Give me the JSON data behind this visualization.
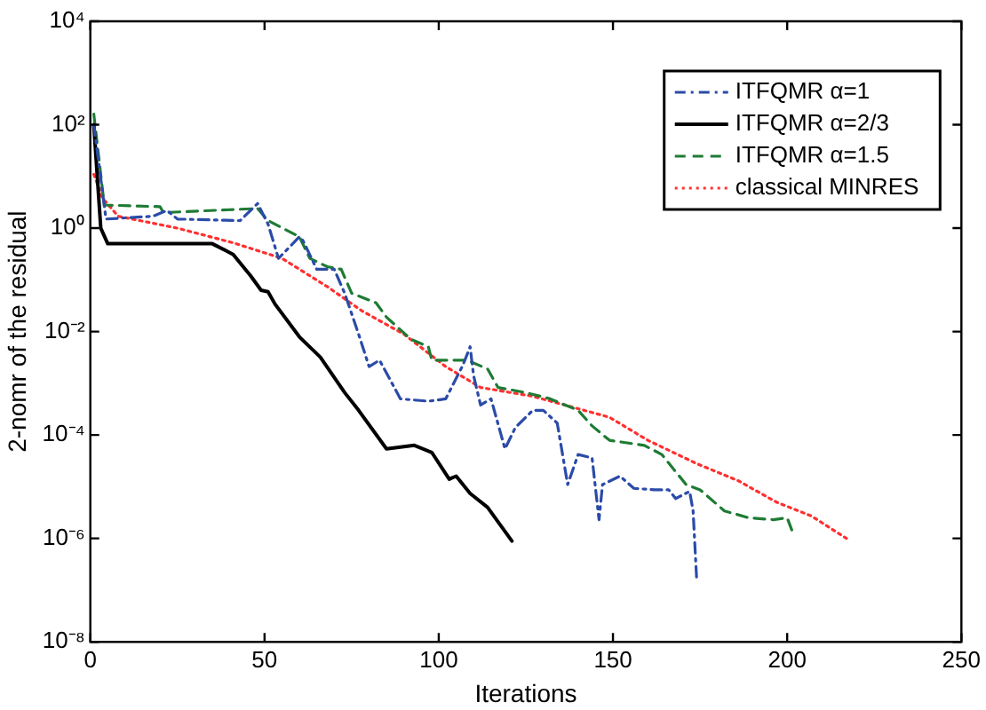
{
  "chart_data": {
    "type": "line",
    "xlabel": "Iterations",
    "ylabel": "2-nomr of the residual",
    "log": "y",
    "grid": false,
    "legend": "top right",
    "marker": "none",
    "xlim": [
      0,
      250
    ],
    "xticks": [
      0,
      50,
      100,
      150,
      200,
      250
    ],
    "ylim": [
      1e-08,
      10000
    ],
    "yticks": [
      {
        "value": 1e-08,
        "label": "10⁻⁸"
      },
      {
        "value": 1e-06,
        "label": "10⁻⁶"
      },
      {
        "value": 0.0001,
        "label": "10⁻⁴"
      },
      {
        "value": 0.01,
        "label": "10⁻²"
      },
      {
        "value": 1,
        "label": "10⁰"
      },
      {
        "value": 100,
        "label": "10²"
      },
      {
        "value": 10000,
        "label": "10⁴"
      }
    ],
    "series": [
      {
        "name": "ITFQMR α=1",
        "color": "#2b4ba8",
        "line_style": "dashdot",
        "x": [
          1,
          4.5,
          18,
          22,
          25,
          43,
          48,
          51,
          54,
          60,
          61,
          65,
          70,
          73,
          77,
          80,
          83,
          89,
          97,
          102,
          107,
          109,
          110,
          112,
          115,
          119,
          122,
          127,
          130,
          134,
          137,
          140,
          144,
          146,
          147,
          152,
          156,
          162,
          166,
          168,
          172,
          173,
          174
        ],
        "values": [
          100,
          1.5,
          1.7,
          2.2,
          1.5,
          1.4,
          3.0,
          1.2,
          0.26,
          0.68,
          0.58,
          0.16,
          0.16,
          0.055,
          0.0089,
          0.0021,
          0.0028,
          0.0005,
          0.00045,
          0.0005,
          0.0023,
          0.0051,
          0.0014,
          0.00038,
          0.0005,
          5.4e-05,
          0.00014,
          0.0003,
          0.0003,
          0.00017,
          1.1e-05,
          4.2e-05,
          3.6e-05,
          2.3e-06,
          1.1e-05,
          1.6e-05,
          9.3e-06,
          8.7e-06,
          8.7e-06,
          5.9e-06,
          8.1e-06,
          3.4e-06,
          1.7e-07
        ]
      },
      {
        "name": "ITFQMR α=2/3",
        "color": "#000000",
        "line_style": "solid",
        "x": [
          1,
          3,
          5,
          20,
          35,
          41,
          46,
          49,
          51,
          53,
          60,
          66,
          73,
          77,
          85,
          93,
          98,
          103,
          105,
          109,
          114,
          121
        ],
        "values": [
          100,
          1,
          0.5,
          0.5,
          0.5,
          0.31,
          0.12,
          0.063,
          0.059,
          0.034,
          0.0079,
          0.0032,
          0.00066,
          0.0003,
          5.4e-05,
          6.3e-05,
          4.6e-05,
          1.4e-05,
          1.6e-05,
          7.4e-06,
          4e-06,
          8.9e-07
        ]
      },
      {
        "name": "ITFQMR α=1.5",
        "color": "#1e7b34",
        "line_style": "dashed",
        "x": [
          1,
          4,
          20,
          21,
          48,
          51,
          60,
          63,
          68,
          72,
          75,
          82,
          85,
          92,
          97,
          98,
          108,
          114,
          117,
          125,
          132,
          140,
          144,
          149,
          159,
          164,
          171,
          175,
          182,
          189,
          196,
          200,
          202
        ],
        "values": [
          160,
          2.8,
          2.6,
          2.0,
          2.4,
          1.4,
          0.68,
          0.26,
          0.18,
          0.16,
          0.055,
          0.036,
          0.019,
          0.0071,
          0.0051,
          0.0028,
          0.0028,
          0.0019,
          0.00083,
          0.00066,
          0.0005,
          0.0003,
          0.00015,
          7.9e-05,
          6.3e-05,
          4.2e-05,
          1.1e-05,
          8.7e-06,
          3.4e-06,
          2.5e-06,
          2.3e-06,
          2.5e-06,
          1.1e-06
        ]
      },
      {
        "name": "classical MINRES",
        "color": "#ff3030",
        "line_style": "dotted",
        "x": [
          1,
          3.5,
          8,
          25,
          41,
          55,
          68,
          78,
          90,
          102,
          112,
          127,
          149,
          160,
          174,
          186,
          197,
          207,
          217
        ],
        "values": [
          11,
          3.8,
          1.7,
          1,
          0.52,
          0.26,
          0.074,
          0.025,
          0.0089,
          0.0021,
          0.00083,
          0.00056,
          0.00022,
          7.9e-05,
          2.8e-05,
          1.3e-05,
          5e-06,
          2.7e-06,
          1e-06
        ]
      }
    ]
  }
}
